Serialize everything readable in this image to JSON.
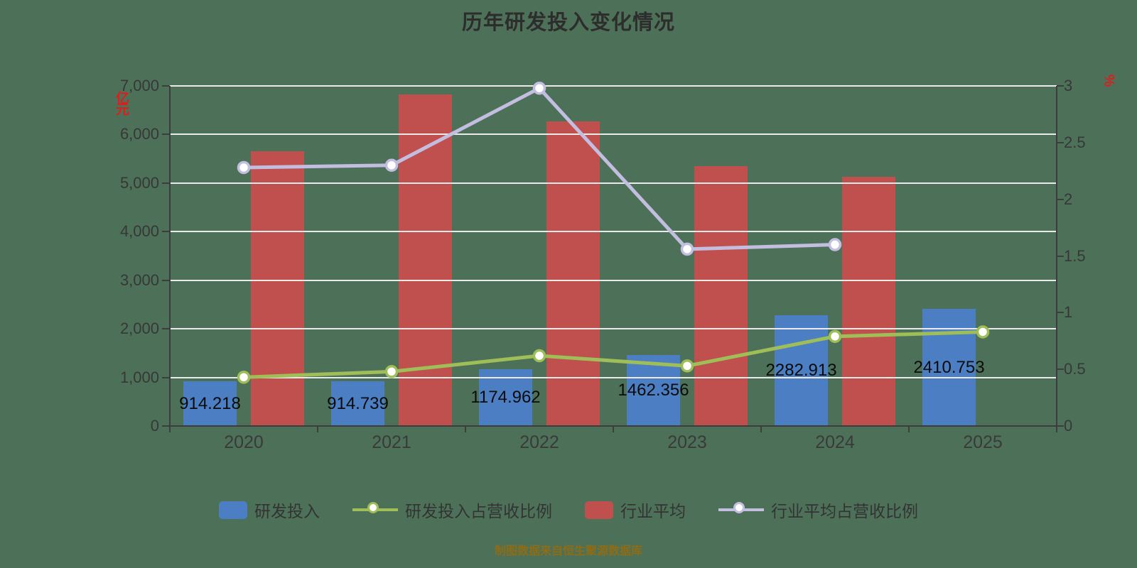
{
  "caption": "制图数据来自恒生聚源数据库",
  "colors": {
    "background": "#4d7158",
    "rd_investment_bar": "#4b7ec3",
    "industry_avg_bar": "#c0504d",
    "rd_ratio_line": "#9fbe58",
    "industry_ratio_line": "#c3bedf",
    "axis_unit_text": "#dc1e1e",
    "caption_text": "#8e6c15",
    "grid_line": "#eaeaea",
    "axis_line": "#3d3d3d"
  },
  "legend": {
    "items": [
      {
        "label": "研发投入",
        "marker": "rect",
        "color": "#4b7ec3"
      },
      {
        "label": "研发投入占营收比例",
        "marker": "line",
        "color": "#9fbe58"
      },
      {
        "label": "行业平均",
        "marker": "rect",
        "color": "#c0504d"
      },
      {
        "label": "行业平均占营收比例",
        "marker": "line",
        "color": "#c3bedf"
      }
    ]
  },
  "chart_data": {
    "type": "bar",
    "title": "历年研发投入变化情况",
    "categories": [
      "2020",
      "2021",
      "2022",
      "2023",
      "2024",
      "2025"
    ],
    "series": [
      {
        "name": "研发投入",
        "type": "bar",
        "axis": "left",
        "color": "#4b7ec3",
        "show_labels": true,
        "values": [
          914.218,
          914.739,
          1174.962,
          1462.356,
          2282.913,
          2410.753
        ]
      },
      {
        "name": "行业平均",
        "type": "bar",
        "axis": "left",
        "color": "#c0504d",
        "show_labels": false,
        "values": [
          5660,
          6820,
          6270,
          5350,
          5130,
          null
        ]
      },
      {
        "name": "研发投入占营收比例",
        "type": "line",
        "axis": "right",
        "color": "#9fbe58",
        "values": [
          0.43,
          0.48,
          0.62,
          0.53,
          0.79,
          0.83
        ]
      },
      {
        "name": "行业平均占营收比例",
        "type": "line",
        "axis": "right",
        "color": "#c3bedf",
        "values": [
          2.28,
          2.3,
          2.98,
          1.56,
          1.6,
          null
        ]
      }
    ],
    "left_axis": {
      "min": 0,
      "max": 7000,
      "step": 1000,
      "unit": "亿元",
      "tick_labels": [
        "0",
        "1,000",
        "2,000",
        "3,000",
        "4,000",
        "5,000",
        "6,000",
        "7,000"
      ]
    },
    "right_axis": {
      "min": 0,
      "max": 3,
      "step": 0.5,
      "unit": "%",
      "tick_labels": [
        "0",
        "0.5",
        "1",
        "1.5",
        "2",
        "2.5",
        "3"
      ]
    },
    "grid": true,
    "legend_position": "bottom"
  }
}
